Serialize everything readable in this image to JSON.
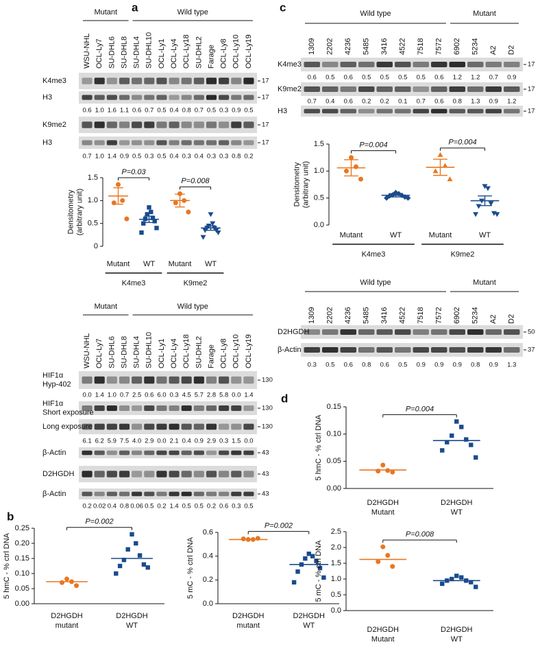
{
  "panel_labels": [
    "a",
    "b",
    "c",
    "d"
  ],
  "blots": [
    {
      "groups": [
        {
          "label": "Mutant",
          "lanes": [
            "WSU-NHL",
            "OCL-Ly7",
            "SU-DHL6",
            "SU-DHL8"
          ]
        },
        {
          "label": "Wild type",
          "lanes": [
            "SU-DHL4",
            "SU-DHL10",
            "OCL-Ly1",
            "OCL-Ly4",
            "OCL-Ly18",
            "SU-DHL2",
            "Farage",
            "OCL-Ly8",
            "OCL-Ly10",
            "OCL-Ly19"
          ]
        }
      ],
      "rows": [
        {
          "label": [
            "K4me3"
          ],
          "marker": 17
        },
        {
          "label": [
            "H3"
          ],
          "marker": 17,
          "quant": [
            "0.6",
            "1.0",
            "1.6",
            "1.1",
            "0.6",
            "0.7",
            "0.5",
            "0.4",
            "0.8",
            "0.7",
            "0.5",
            "0.3",
            "0.9",
            "0.5"
          ]
        },
        {
          "label": [
            "K9me2"
          ],
          "marker": 17
        },
        {
          "label": [
            "H3"
          ],
          "marker": 17,
          "quant": [
            "0.7",
            "1.0",
            "1.4",
            "0.9",
            "0.5",
            "0.3",
            "0.5",
            "0.4",
            "0.3",
            "0.4",
            "0.3",
            "0.3",
            "0.8",
            "0.2"
          ]
        }
      ]
    },
    {
      "groups": [
        {
          "label": "Mutant",
          "lanes": [
            "WSU-NHL",
            "OCL-Ly7",
            "SU-DHL6",
            "SU-DHL8"
          ]
        },
        {
          "label": "Wild type",
          "lanes": [
            "SU-DHL4",
            "SU-DHL10",
            "OCL-Ly1",
            "OCL-Ly4",
            "OCL-Ly18",
            "SU-DHL2",
            "Farage",
            "OCL-Ly8",
            "OCL-Ly10",
            "OCL-Ly19"
          ]
        }
      ],
      "rows": [
        {
          "label": [
            "HIF1α",
            "Hyp-402"
          ],
          "marker": 130,
          "quant": [
            "0.0",
            "1.4",
            "1.0",
            "0.7",
            "2.5",
            "0.6",
            "6.0",
            "0.3",
            "4.5",
            "5.7",
            "2.8",
            "5.8",
            "0.0",
            "1.4"
          ]
        },
        {
          "label": [
            "HIF1α",
            "Short exposure"
          ],
          "marker": 130
        },
        {
          "label": [
            "Long exposure"
          ],
          "marker": 130,
          "quant": [
            "6.1",
            "6.2",
            "5.9",
            "7.5",
            "4.0",
            "2.9",
            "0.0",
            "2.1",
            "0.4",
            "0.9",
            "2.9",
            "0.3",
            "1.5",
            "0.0"
          ]
        },
        {
          "label": [
            "β-Actin"
          ],
          "marker": 43
        },
        {
          "label": [
            "D2HGDH"
          ],
          "marker": 43
        },
        {
          "label": [
            "β-Actin"
          ],
          "marker": 43,
          "quant": [
            "0.2",
            "0.02",
            "0.4",
            "0.8",
            "0.06",
            "0.5",
            "0.2",
            "1.4",
            "0.5",
            "0.5",
            "0.2",
            "0.6",
            "0.3",
            "0.5"
          ]
        }
      ]
    },
    {
      "groups": [
        {
          "label": "Wild type",
          "lanes": [
            "1309",
            "2202",
            "4236",
            "5485",
            "3416",
            "4522",
            "7518",
            "7572"
          ]
        },
        {
          "label": "Mutant",
          "lanes": [
            "6902",
            "5234",
            "A2",
            "D2"
          ]
        }
      ],
      "rows": [
        {
          "label": [
            "K4me3"
          ],
          "marker": 17,
          "quant": [
            "0.6",
            "0.5",
            "0.6",
            "0.5",
            "0.5",
            "0.5",
            "0.5",
            "0.6",
            "1.2",
            "1.2",
            "0.7",
            "0.9"
          ]
        },
        {
          "label": [
            "K9me2"
          ],
          "marker": 17,
          "quant": [
            "0.7",
            "0.4",
            "0.6",
            "0.2",
            "0.2",
            "0.1",
            "0.7",
            "0.6",
            "0.8",
            "1.3",
            "0.9",
            "1.2"
          ]
        },
        {
          "label": [
            "H3"
          ],
          "marker": 17
        }
      ]
    },
    {
      "groups": [
        {
          "label": "Wild type",
          "lanes": [
            "1309",
            "2202",
            "4236",
            "5485",
            "3416",
            "4522",
            "7518",
            "7572"
          ]
        },
        {
          "label": "Mutant",
          "lanes": [
            "6902",
            "5234",
            "A2",
            "D2"
          ]
        }
      ],
      "rows": [
        {
          "label": [
            "D2HGDH"
          ],
          "marker": 50
        },
        {
          "label": [
            "β-Actin"
          ],
          "marker": 37,
          "quant": [
            "0.3",
            "0.5",
            "0.6",
            "0.8",
            "0.6",
            "0.5",
            "0.9",
            "0.9",
            "0.9",
            "0.8",
            "0.9",
            "1.3"
          ]
        }
      ]
    }
  ],
  "chart_data": [
    {
      "type": "scatter",
      "ylabel": [
        "Densitometry",
        "(arbitrary unit)"
      ],
      "ylim": [
        0,
        1.5
      ],
      "yticks": [
        0,
        0.5,
        {
          "value": 1,
          "label": "1.0"
        },
        1.5
      ],
      "categories": [
        "Mutant",
        "WT",
        "Mutant",
        "WT"
      ],
      "groups": [
        "K4me3",
        "K9me2"
      ],
      "annotations": [
        "P=0.03",
        "P=0.008"
      ],
      "series": [
        {
          "color": "#e87722",
          "marker": "circle",
          "values": [
            1.35,
            1.0,
            0.95,
            0.6
          ],
          "mean": 1.1,
          "sem": 0.18
        },
        {
          "color": "#1a4b8c",
          "marker": "square",
          "values": [
            0.85,
            0.75,
            0.7,
            0.62,
            0.6,
            0.55,
            0.5,
            0.4,
            0.3
          ],
          "mean": 0.59,
          "sem": 0.07
        },
        {
          "color": "#e87722",
          "marker": "circle",
          "values": [
            1.15,
            1.0,
            0.95,
            0.75
          ],
          "mean": 1.0,
          "sem": 0.14
        },
        {
          "color": "#1a4b8c",
          "marker": "triangle-down",
          "values": [
            0.7,
            0.5,
            0.45,
            0.4,
            0.4,
            0.35,
            0.35,
            0.3,
            0.2
          ],
          "mean": 0.4,
          "sem": 0.05
        }
      ]
    },
    {
      "type": "scatter",
      "ylabel": [
        "5 hmC - % ctrl DNA"
      ],
      "ylim": [
        0,
        0.25
      ],
      "yticks": [
        {
          "value": 0,
          "label": "0.00"
        },
        0.05,
        {
          "value": 0.1,
          "label": "0.10"
        },
        0.15,
        {
          "value": 0.2,
          "label": "0.20"
        },
        0.25
      ],
      "categories": [
        [
          "D2HGDH",
          "mutant"
        ],
        [
          "D2HGDH",
          "WT"
        ]
      ],
      "annotations": [
        "P=0.002"
      ],
      "series": [
        {
          "color": "#e87722",
          "marker": "circle",
          "values": [
            0.082,
            0.073,
            0.07,
            0.06
          ],
          "mean": 0.073
        },
        {
          "color": "#1a4b8c",
          "marker": "square",
          "values": [
            0.23,
            0.2,
            0.18,
            0.16,
            0.145,
            0.13,
            0.125,
            0.12,
            0.1
          ],
          "mean": 0.15
        }
      ]
    },
    {
      "type": "scatter",
      "ylabel": [
        "5 mC - % ctrl DNA"
      ],
      "ylim": [
        0,
        0.6
      ],
      "yticks": [
        {
          "value": 0,
          "label": "0.0"
        },
        0.2,
        0.4,
        0.6
      ],
      "categories": [
        [
          "D2HGDH",
          "mutant"
        ],
        [
          "D2HGDH",
          "WT"
        ]
      ],
      "annotations": [
        "P=0.002"
      ],
      "series": [
        {
          "color": "#e87722",
          "marker": "circle",
          "values": [
            0.54,
            0.54,
            0.545,
            0.55
          ],
          "mean": 0.54
        },
        {
          "color": "#1a4b8c",
          "marker": "square",
          "values": [
            0.42,
            0.4,
            0.38,
            0.36,
            0.33,
            0.3,
            0.27,
            0.22,
            0.18
          ],
          "mean": 0.33
        }
      ]
    },
    {
      "type": "scatter",
      "ylabel": [
        "Densitometry",
        "(arbitrary unit)"
      ],
      "ylim": [
        0,
        1.5
      ],
      "yticks": [
        {
          "value": 0,
          "label": "0.0"
        },
        0.5,
        {
          "value": 1,
          "label": "1.0"
        },
        1.5
      ],
      "categories": [
        "Mutant",
        "WT",
        "Mutant",
        "WT"
      ],
      "groups": [
        "K4me3",
        "K9me2"
      ],
      "annotations": [
        "P=0.004",
        "P=0.004"
      ],
      "series": [
        {
          "color": "#e87722",
          "marker": "circle",
          "values": [
            1.25,
            1.08,
            1.0,
            0.85
          ],
          "mean": 1.06,
          "sem": 0.15
        },
        {
          "color": "#1a4b8c",
          "marker": "diamond",
          "values": [
            0.6,
            0.58,
            0.56,
            0.55,
            0.54,
            0.52,
            0.5,
            0.5
          ],
          "mean": 0.55,
          "sem": 0.03
        },
        {
          "color": "#e87722",
          "marker": "triangle",
          "values": [
            1.3,
            1.1,
            1.0,
            0.85
          ],
          "mean": 1.07,
          "sem": 0.15
        },
        {
          "color": "#1a4b8c",
          "marker": "triangle-down",
          "values": [
            0.72,
            0.68,
            0.45,
            0.4,
            0.35,
            0.22,
            0.2,
            0.2
          ],
          "mean": 0.45,
          "sem": 0.09
        }
      ]
    },
    {
      "type": "scatter",
      "ylabel": [
        "5 hmC - % ctrl DNA"
      ],
      "ylim": [
        0,
        0.15
      ],
      "yticks": [
        {
          "value": 0,
          "label": "0.00"
        },
        0.05,
        {
          "value": 0.1,
          "label": "0.10"
        },
        0.15
      ],
      "categories": [
        [
          "D2HGDH",
          "Mutant"
        ],
        [
          "D2HGDH",
          "WT"
        ]
      ],
      "annotations": [
        "P=0.004"
      ],
      "series": [
        {
          "color": "#e87722",
          "marker": "circle",
          "values": [
            0.043,
            0.033,
            0.032,
            0.03
          ],
          "mean": 0.034
        },
        {
          "color": "#1a4b8c",
          "marker": "square",
          "values": [
            0.123,
            0.113,
            0.097,
            0.09,
            0.085,
            0.08,
            0.07,
            0.057
          ],
          "mean": 0.088
        }
      ]
    },
    {
      "type": "scatter",
      "ylabel": [
        "5 mC - % ctrl DNA"
      ],
      "ylim": [
        0,
        2.5
      ],
      "yticks": [
        {
          "value": 0,
          "label": "0.0"
        },
        0.5,
        {
          "value": 1,
          "label": "1.0"
        },
        1.5,
        {
          "value": 2,
          "label": "2.0"
        },
        2.5
      ],
      "categories": [
        [
          "D2HGDH",
          "Mutant"
        ],
        [
          "D2HGDH",
          "WT"
        ]
      ],
      "annotations": [
        "P=0.008"
      ],
      "series": [
        {
          "color": "#e87722",
          "marker": "circle",
          "values": [
            2.02,
            1.75,
            1.55,
            1.4
          ],
          "mean": 1.62
        },
        {
          "color": "#1a4b8c",
          "marker": "square",
          "values": [
            1.1,
            1.05,
            1.0,
            0.95,
            0.95,
            0.9,
            0.85,
            0.75
          ],
          "mean": 0.95
        }
      ]
    }
  ]
}
